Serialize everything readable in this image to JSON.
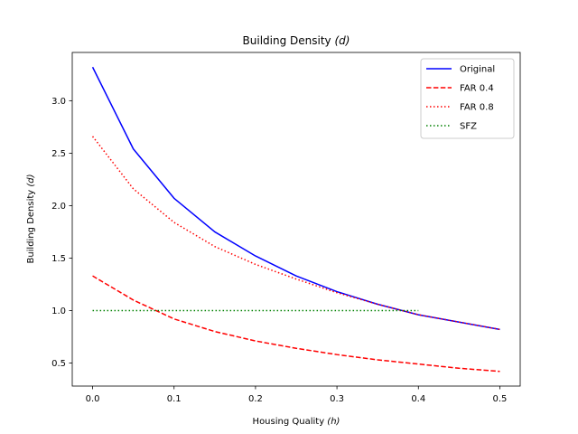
{
  "chart_data": {
    "type": "line",
    "title": "Building Density (d)",
    "title_main": "Building Density ",
    "title_var": "(d)",
    "xlabel": "Housing Quality (h)",
    "xlabel_main": "Housing Quality ",
    "xlabel_var": "(h)",
    "ylabel": "Building Density (d)",
    "ylabel_main": "Building Density ",
    "ylabel_var": "(d)",
    "xlim": [
      -0.025,
      0.525
    ],
    "ylim": [
      0.28,
      3.46
    ],
    "xticks": [
      0.0,
      0.1,
      0.2,
      0.3,
      0.4,
      0.5
    ],
    "xtick_labels": [
      "0.0",
      "0.1",
      "0.2",
      "0.3",
      "0.4",
      "0.5"
    ],
    "yticks": [
      0.5,
      1.0,
      1.5,
      2.0,
      2.5,
      3.0
    ],
    "ytick_labels": [
      "0.5",
      "1.0",
      "1.5",
      "2.0",
      "2.5",
      "3.0"
    ],
    "grid": false,
    "legend_position": "top-right",
    "x": [
      0.0,
      0.05,
      0.1,
      0.15,
      0.2,
      0.25,
      0.3,
      0.35,
      0.4,
      0.45,
      0.5
    ],
    "series": [
      {
        "name": "Original",
        "color": "#0000ff",
        "style": "solid",
        "values": [
          3.32,
          2.54,
          2.07,
          1.75,
          1.52,
          1.33,
          1.18,
          1.06,
          0.96,
          0.89,
          0.82
        ]
      },
      {
        "name": "FAR 0.4",
        "color": "#ff0000",
        "style": "dashed",
        "values": [
          1.33,
          1.1,
          0.92,
          0.8,
          0.71,
          0.64,
          0.58,
          0.53,
          0.49,
          0.45,
          0.42
        ]
      },
      {
        "name": "FAR 0.8",
        "color": "#ff0000",
        "style": "dotted",
        "values": [
          2.66,
          2.16,
          1.84,
          1.61,
          1.44,
          1.3,
          1.17,
          1.06,
          0.96,
          0.89,
          0.82
        ]
      },
      {
        "name": "SFZ",
        "color": "#008000",
        "style": "dotted",
        "values": [
          1.0,
          1.0,
          1.0,
          1.0,
          1.0,
          1.0,
          1.0,
          1.0,
          1.0,
          null,
          null
        ]
      }
    ]
  }
}
